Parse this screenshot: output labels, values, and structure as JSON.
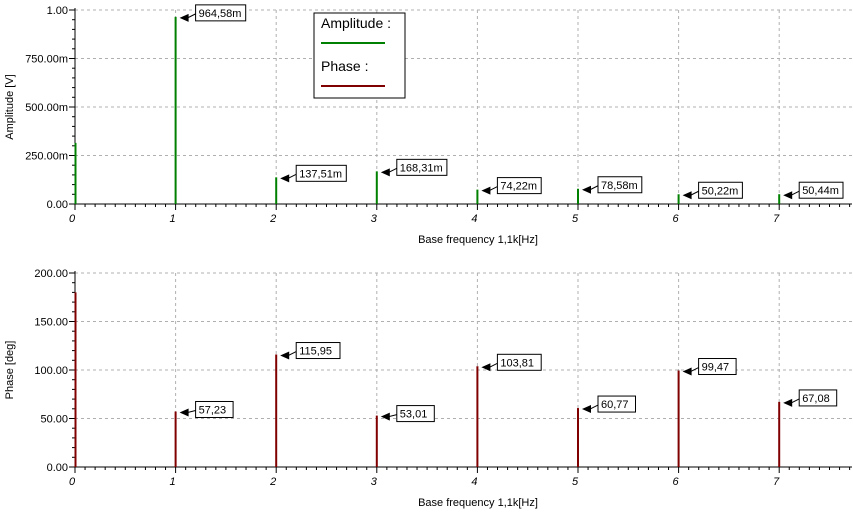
{
  "chart_data": [
    {
      "type": "bar",
      "ylabel": "Amplitude [V]",
      "xlabel": "Base frequency 1,1k[Hz]",
      "xlim": [
        0,
        7.8
      ],
      "ylim": [
        0,
        1.0
      ],
      "grid": true,
      "ytick_labels": [
        "0.00",
        "250.00m",
        "500.00m",
        "750.00m",
        "1.00"
      ],
      "ytick_values": [
        0,
        0.25,
        0.5,
        0.75,
        1.0
      ],
      "xtick_labels": [
        "0",
        "1",
        "2",
        "3",
        "4",
        "5",
        "6",
        "7"
      ],
      "color": "#008000",
      "x": [
        0,
        1,
        2,
        3,
        4,
        5,
        6,
        7
      ],
      "values": [
        0.315,
        0.96458,
        0.13751,
        0.16831,
        0.07422,
        0.07858,
        0.05022,
        0.05044
      ],
      "data_labels": [
        "",
        "964,58m",
        "137,51m",
        "168,31m",
        "74,22m",
        "78,58m",
        "50,22m",
        "50,44m"
      ],
      "legend": {
        "placement": "top-center",
        "entries": [
          {
            "label": "Amplitude :",
            "color": "#008000"
          },
          {
            "label": "Phase :",
            "color": "#800000"
          }
        ]
      }
    },
    {
      "type": "bar",
      "ylabel": "Phase [deg]",
      "xlabel": "Base frequency 1,1k[Hz]",
      "xlim": [
        0,
        7.8
      ],
      "ylim": [
        0,
        200
      ],
      "grid": true,
      "ytick_labels": [
        "0.00",
        "50.00",
        "100.00",
        "150.00",
        "200.00"
      ],
      "ytick_values": [
        0,
        50,
        100,
        150,
        200
      ],
      "xtick_labels": [
        "0",
        "1",
        "2",
        "3",
        "4",
        "5",
        "6",
        "7"
      ],
      "color": "#800000",
      "x": [
        0,
        1,
        2,
        3,
        4,
        5,
        6,
        7
      ],
      "values": [
        180,
        57.23,
        115.95,
        53.01,
        103.81,
        60.77,
        99.47,
        67.08
      ],
      "data_labels": [
        "",
        "57,23",
        "115,95",
        "53,01",
        "103,81",
        "60,77",
        "99,47",
        "67,08"
      ]
    }
  ]
}
